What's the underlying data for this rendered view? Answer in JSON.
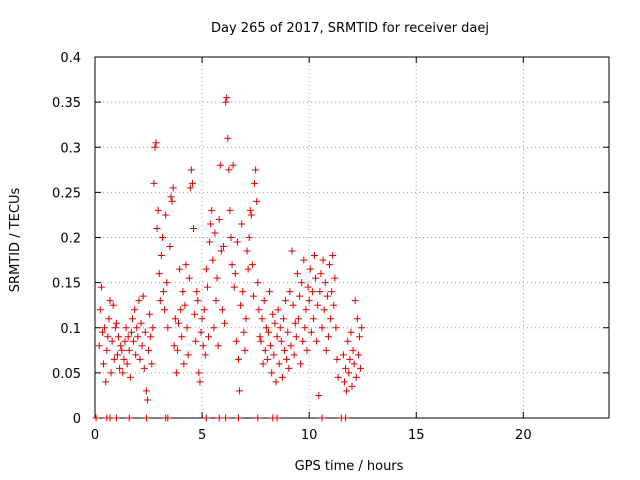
{
  "chart_data": {
    "type": "scatter",
    "title": "Day 265 of 2017, SRMTID for receiver daej",
    "xlabel": "GPS time / hours",
    "ylabel": "SRMTID / TECUs",
    "xlim": [
      0,
      24
    ],
    "ylim": [
      0,
      0.4
    ],
    "xticks": [
      0,
      5,
      10,
      15,
      20
    ],
    "yticks": [
      0,
      0.05,
      0.1,
      0.15,
      0.2,
      0.25,
      0.3,
      0.35,
      0.4
    ],
    "xtick_labels": [
      "0",
      "5",
      "10",
      "15",
      "20"
    ],
    "ytick_labels": [
      "0",
      "0.05",
      "0.1",
      "0.15",
      "0.2",
      "0.25",
      "0.3",
      "0.35",
      "0.4"
    ],
    "grid": true,
    "marker": "+",
    "color": "#e00000",
    "series": [
      {
        "points": [
          [
            0.05,
            0.0
          ],
          [
            0.55,
            0.0
          ],
          [
            0.7,
            0.0
          ],
          [
            1.0,
            0.0
          ],
          [
            1.6,
            0.0
          ],
          [
            2.4,
            0.0
          ],
          [
            3.3,
            0.0
          ],
          [
            3.4,
            0.0
          ],
          [
            5.2,
            0.0
          ],
          [
            5.8,
            0.0
          ],
          [
            6.1,
            0.0
          ],
          [
            6.7,
            0.0
          ],
          [
            7.6,
            0.0
          ],
          [
            8.3,
            0.0
          ],
          [
            8.5,
            0.0
          ],
          [
            10.6,
            0.0
          ],
          [
            11.5,
            0.0
          ],
          [
            11.7,
            0.0
          ],
          [
            0.2,
            0.08
          ],
          [
            0.25,
            0.12
          ],
          [
            0.3,
            0.145
          ],
          [
            0.35,
            0.095
          ],
          [
            0.4,
            0.06
          ],
          [
            0.45,
            0.1
          ],
          [
            0.5,
            0.04
          ],
          [
            0.55,
            0.075
          ],
          [
            0.6,
            0.09
          ],
          [
            0.65,
            0.11
          ],
          [
            0.7,
            0.13
          ],
          [
            0.75,
            0.05
          ],
          [
            0.8,
            0.085
          ],
          [
            0.85,
            0.125
          ],
          [
            0.9,
            0.065
          ],
          [
            0.95,
            0.1
          ],
          [
            1.0,
            0.105
          ],
          [
            1.05,
            0.07
          ],
          [
            1.1,
            0.09
          ],
          [
            1.15,
            0.055
          ],
          [
            1.2,
            0.08
          ],
          [
            1.25,
            0.075
          ],
          [
            1.3,
            0.05
          ],
          [
            1.35,
            0.065
          ],
          [
            1.4,
            0.085
          ],
          [
            1.45,
            0.1
          ],
          [
            1.5,
            0.06
          ],
          [
            1.55,
            0.09
          ],
          [
            1.6,
            0.075
          ],
          [
            1.65,
            0.045
          ],
          [
            1.7,
            0.095
          ],
          [
            1.75,
            0.11
          ],
          [
            1.8,
            0.085
          ],
          [
            1.85,
            0.12
          ],
          [
            1.9,
            0.07
          ],
          [
            1.95,
            0.1
          ],
          [
            2.0,
            0.09
          ],
          [
            2.05,
            0.13
          ],
          [
            2.1,
            0.065
          ],
          [
            2.15,
            0.105
          ],
          [
            2.2,
            0.08
          ],
          [
            2.25,
            0.135
          ],
          [
            2.3,
            0.055
          ],
          [
            2.35,
            0.095
          ],
          [
            2.4,
            0.03
          ],
          [
            2.45,
            0.02
          ],
          [
            2.5,
            0.075
          ],
          [
            2.55,
            0.115
          ],
          [
            2.6,
            0.09
          ],
          [
            2.65,
            0.06
          ],
          [
            2.7,
            0.1
          ],
          [
            2.75,
            0.26
          ],
          [
            2.8,
            0.3
          ],
          [
            2.85,
            0.305
          ],
          [
            2.9,
            0.21
          ],
          [
            2.95,
            0.23
          ],
          [
            3.0,
            0.16
          ],
          [
            3.05,
            0.13
          ],
          [
            3.1,
            0.18
          ],
          [
            3.15,
            0.2
          ],
          [
            3.2,
            0.14
          ],
          [
            3.25,
            0.12
          ],
          [
            3.3,
            0.225
          ],
          [
            3.35,
            0.15
          ],
          [
            3.4,
            0.1
          ],
          [
            3.5,
            0.19
          ],
          [
            3.55,
            0.245
          ],
          [
            3.6,
            0.24
          ],
          [
            3.65,
            0.255
          ],
          [
            3.7,
            0.08
          ],
          [
            3.75,
            0.11
          ],
          [
            3.8,
            0.05
          ],
          [
            3.85,
            0.075
          ],
          [
            3.9,
            0.105
          ],
          [
            3.95,
            0.165
          ],
          [
            4.0,
            0.12
          ],
          [
            4.05,
            0.09
          ],
          [
            4.1,
            0.14
          ],
          [
            4.15,
            0.06
          ],
          [
            4.2,
            0.125
          ],
          [
            4.25,
            0.17
          ],
          [
            4.3,
            0.1
          ],
          [
            4.35,
            0.07
          ],
          [
            4.4,
            0.155
          ],
          [
            4.45,
            0.255
          ],
          [
            4.5,
            0.275
          ],
          [
            4.55,
            0.26
          ],
          [
            4.6,
            0.21
          ],
          [
            4.65,
            0.115
          ],
          [
            4.7,
            0.085
          ],
          [
            4.75,
            0.14
          ],
          [
            4.8,
            0.13
          ],
          [
            4.85,
            0.05
          ],
          [
            4.9,
            0.04
          ],
          [
            4.95,
            0.095
          ],
          [
            5.0,
            0.11
          ],
          [
            5.05,
            0.08
          ],
          [
            5.1,
            0.12
          ],
          [
            5.15,
            0.07
          ],
          [
            5.2,
            0.165
          ],
          [
            5.25,
            0.145
          ],
          [
            5.3,
            0.09
          ],
          [
            5.35,
            0.195
          ],
          [
            5.4,
            0.215
          ],
          [
            5.45,
            0.23
          ],
          [
            5.5,
            0.175
          ],
          [
            5.55,
            0.1
          ],
          [
            5.6,
            0.205
          ],
          [
            5.65,
            0.13
          ],
          [
            5.7,
            0.155
          ],
          [
            5.75,
            0.08
          ],
          [
            5.8,
            0.22
          ],
          [
            5.85,
            0.28
          ],
          [
            5.9,
            0.185
          ],
          [
            5.95,
            0.12
          ],
          [
            6.0,
            0.19
          ],
          [
            6.05,
            0.105
          ],
          [
            6.1,
            0.35
          ],
          [
            6.15,
            0.355
          ],
          [
            6.2,
            0.31
          ],
          [
            6.25,
            0.275
          ],
          [
            6.3,
            0.23
          ],
          [
            6.35,
            0.2
          ],
          [
            6.4,
            0.17
          ],
          [
            6.45,
            0.28
          ],
          [
            6.5,
            0.145
          ],
          [
            6.55,
            0.16
          ],
          [
            6.6,
            0.085
          ],
          [
            6.65,
            0.195
          ],
          [
            6.7,
            0.065
          ],
          [
            6.75,
            0.03
          ],
          [
            6.8,
            0.125
          ],
          [
            6.85,
            0.215
          ],
          [
            6.9,
            0.14
          ],
          [
            6.95,
            0.095
          ],
          [
            7.0,
            0.075
          ],
          [
            7.05,
            0.11
          ],
          [
            7.1,
            0.185
          ],
          [
            7.15,
            0.165
          ],
          [
            7.2,
            0.2
          ],
          [
            7.25,
            0.23
          ],
          [
            7.3,
            0.225
          ],
          [
            7.35,
            0.17
          ],
          [
            7.4,
            0.135
          ],
          [
            7.45,
            0.26
          ],
          [
            7.5,
            0.275
          ],
          [
            7.55,
            0.24
          ],
          [
            7.6,
            0.15
          ],
          [
            7.65,
            0.12
          ],
          [
            7.7,
            0.09
          ],
          [
            7.75,
            0.085
          ],
          [
            7.8,
            0.11
          ],
          [
            7.85,
            0.06
          ],
          [
            7.9,
            0.13
          ],
          [
            7.95,
            0.075
          ],
          [
            8.0,
            0.1
          ],
          [
            8.05,
            0.065
          ],
          [
            8.1,
            0.095
          ],
          [
            8.15,
            0.14
          ],
          [
            8.2,
            0.08
          ],
          [
            8.25,
            0.05
          ],
          [
            8.3,
            0.115
          ],
          [
            8.35,
            0.07
          ],
          [
            8.4,
            0.105
          ],
          [
            8.45,
            0.04
          ],
          [
            8.5,
            0.09
          ],
          [
            8.55,
            0.12
          ],
          [
            8.6,
            0.06
          ],
          [
            8.65,
            0.1
          ],
          [
            8.7,
            0.085
          ],
          [
            8.75,
            0.045
          ],
          [
            8.8,
            0.11
          ],
          [
            8.85,
            0.075
          ],
          [
            8.9,
            0.13
          ],
          [
            8.95,
            0.065
          ],
          [
            9.0,
            0.095
          ],
          [
            9.05,
            0.055
          ],
          [
            9.1,
            0.14
          ],
          [
            9.15,
            0.08
          ],
          [
            9.2,
            0.185
          ],
          [
            9.25,
            0.125
          ],
          [
            9.3,
            0.07
          ],
          [
            9.35,
            0.105
          ],
          [
            9.4,
            0.09
          ],
          [
            9.45,
            0.16
          ],
          [
            9.5,
            0.11
          ],
          [
            9.55,
            0.135
          ],
          [
            9.6,
            0.06
          ],
          [
            9.65,
            0.15
          ],
          [
            9.7,
            0.085
          ],
          [
            9.75,
            0.175
          ],
          [
            9.8,
            0.1
          ],
          [
            9.85,
            0.12
          ],
          [
            9.9,
            0.075
          ],
          [
            9.95,
            0.145
          ],
          [
            10.0,
            0.13
          ],
          [
            10.05,
            0.165
          ],
          [
            10.1,
            0.095
          ],
          [
            10.15,
            0.14
          ],
          [
            10.2,
            0.11
          ],
          [
            10.25,
            0.18
          ],
          [
            10.3,
            0.155
          ],
          [
            10.35,
            0.085
          ],
          [
            10.4,
            0.125
          ],
          [
            10.45,
            0.025
          ],
          [
            10.5,
            0.14
          ],
          [
            10.55,
            0.16
          ],
          [
            10.6,
            0.1
          ],
          [
            10.65,
            0.175
          ],
          [
            10.7,
            0.12
          ],
          [
            10.75,
            0.15
          ],
          [
            10.8,
            0.075
          ],
          [
            10.85,
            0.135
          ],
          [
            10.9,
            0.09
          ],
          [
            10.95,
            0.17
          ],
          [
            11.0,
            0.11
          ],
          [
            11.05,
            0.14
          ],
          [
            11.1,
            0.18
          ],
          [
            11.15,
            0.125
          ],
          [
            11.2,
            0.155
          ],
          [
            11.25,
            0.1
          ],
          [
            11.3,
            0.065
          ],
          [
            11.35,
            0.045
          ],
          [
            11.6,
            0.07
          ],
          [
            11.65,
            0.04
          ],
          [
            11.7,
            0.055
          ],
          [
            11.75,
            0.03
          ],
          [
            11.8,
            0.085
          ],
          [
            11.85,
            0.05
          ],
          [
            11.9,
            0.065
          ],
          [
            11.95,
            0.095
          ],
          [
            12.0,
            0.035
          ],
          [
            12.05,
            0.075
          ],
          [
            12.1,
            0.06
          ],
          [
            12.15,
            0.13
          ],
          [
            12.2,
            0.045
          ],
          [
            12.25,
            0.11
          ],
          [
            12.3,
            0.07
          ],
          [
            12.35,
            0.09
          ],
          [
            12.4,
            0.055
          ],
          [
            12.45,
            0.1
          ]
        ]
      }
    ]
  }
}
